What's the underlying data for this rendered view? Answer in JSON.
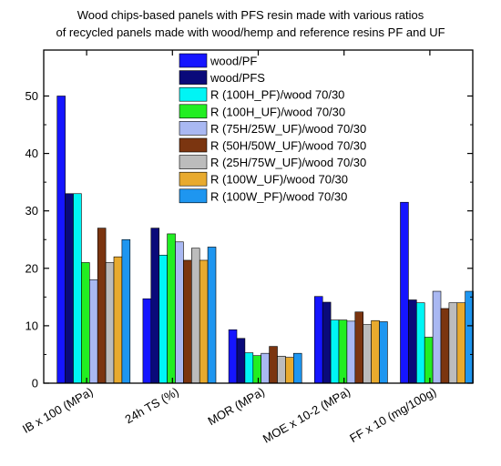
{
  "chart_data": {
    "type": "bar",
    "title": "Wood chips-based panels with PFS resin made with various ratios",
    "subtitle": "of recycled panels made with wood/hemp and reference resins PF and UF",
    "xlabel": "",
    "ylabel": "",
    "categories": [
      "IB x 100 (MPa)",
      "24h TS (%)",
      "MOR (MPa)",
      "MOE x 10-2 (MPa)",
      "FF x 10 (mg/100g)"
    ],
    "ylim": [
      0,
      58
    ],
    "yticks": [
      0,
      10,
      20,
      30,
      40,
      50
    ],
    "grid": false,
    "legend_position": "top-right",
    "series": [
      {
        "name": "wood/PF",
        "color": "#1515ff",
        "values": [
          50,
          14.7,
          9.3,
          15.1,
          31.5
        ]
      },
      {
        "name": "wood/PFS",
        "color": "#0a0a7a",
        "values": [
          33,
          27,
          7.8,
          14.1,
          14.5
        ]
      },
      {
        "name": "R (100H_PF)/wood 70/30",
        "color": "#00f5f5",
        "values": [
          33,
          22.3,
          5.3,
          11,
          14
        ]
      },
      {
        "name": "R (100H_UF)/wood 70/30",
        "color": "#22ee22",
        "values": [
          21,
          26,
          4.8,
          11,
          8
        ]
      },
      {
        "name": "R (75H/25W_UF)/wood 70/30",
        "color": "#a9b8f2",
        "values": [
          18,
          24.6,
          5.2,
          10.8,
          16
        ]
      },
      {
        "name": "R (50H/50W_UF)/wood 70/30",
        "color": "#7b3510",
        "values": [
          27,
          21.4,
          6.4,
          12.4,
          13
        ]
      },
      {
        "name": "R (25H/75W_UF)/wood 70/30",
        "color": "#bcbcbc",
        "values": [
          21,
          23.5,
          4.7,
          10.2,
          14
        ]
      },
      {
        "name": "R (100W_UF)/wood 70/30",
        "color": "#e8aa2e",
        "values": [
          22,
          21.4,
          4.5,
          10.9,
          14
        ]
      },
      {
        "name": "R (100W_PF)/wood 70/30",
        "color": "#1e96f0",
        "values": [
          25,
          23.7,
          5.2,
          10.7,
          16
        ]
      }
    ]
  }
}
